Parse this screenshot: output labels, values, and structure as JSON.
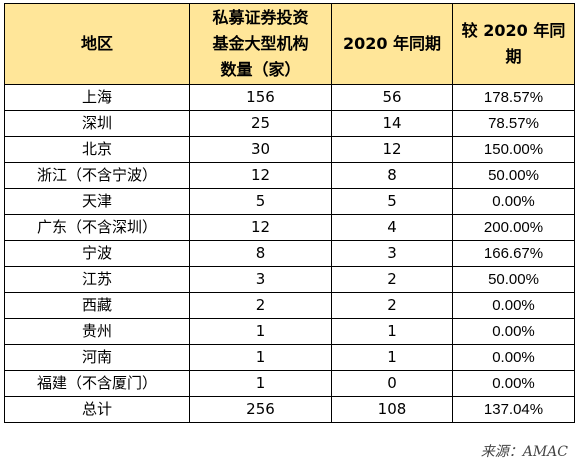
{
  "table": {
    "headers": {
      "region": "地区",
      "count_lines": [
        "私募证券投资",
        "基金大型机构",
        "数量（家）"
      ],
      "prev": "2020 年同期",
      "growth_lines": [
        "较 2020 年同",
        "期"
      ]
    },
    "rows": [
      {
        "region": "上海",
        "count": "156",
        "prev": "56",
        "growth": "178.57%"
      },
      {
        "region": "深圳",
        "count": "25",
        "prev": "14",
        "growth": "78.57%"
      },
      {
        "region": "北京",
        "count": "30",
        "prev": "12",
        "growth": "150.00%"
      },
      {
        "region": "浙江（不含宁波）",
        "count": "12",
        "prev": "8",
        "growth": "50.00%"
      },
      {
        "region": "天津",
        "count": "5",
        "prev": "5",
        "growth": "0.00%"
      },
      {
        "region": "广东（不含深圳）",
        "count": "12",
        "prev": "4",
        "growth": "200.00%"
      },
      {
        "region": "宁波",
        "count": "8",
        "prev": "3",
        "growth": "166.67%"
      },
      {
        "region": "江苏",
        "count": "3",
        "prev": "2",
        "growth": "50.00%"
      },
      {
        "region": "西藏",
        "count": "2",
        "prev": "2",
        "growth": "0.00%"
      },
      {
        "region": "贵州",
        "count": "1",
        "prev": "1",
        "growth": "0.00%"
      },
      {
        "region": "河南",
        "count": "1",
        "prev": "1",
        "growth": "0.00%"
      },
      {
        "region": "福建（不含厦门）",
        "count": "1",
        "prev": "0",
        "growth": "0.00%"
      },
      {
        "region": "总计",
        "count": "256",
        "prev": "108",
        "growth": "137.04%"
      }
    ]
  },
  "source": "来源：AMAC",
  "colors": {
    "header_background": "#FFE699",
    "border": "#000000"
  }
}
